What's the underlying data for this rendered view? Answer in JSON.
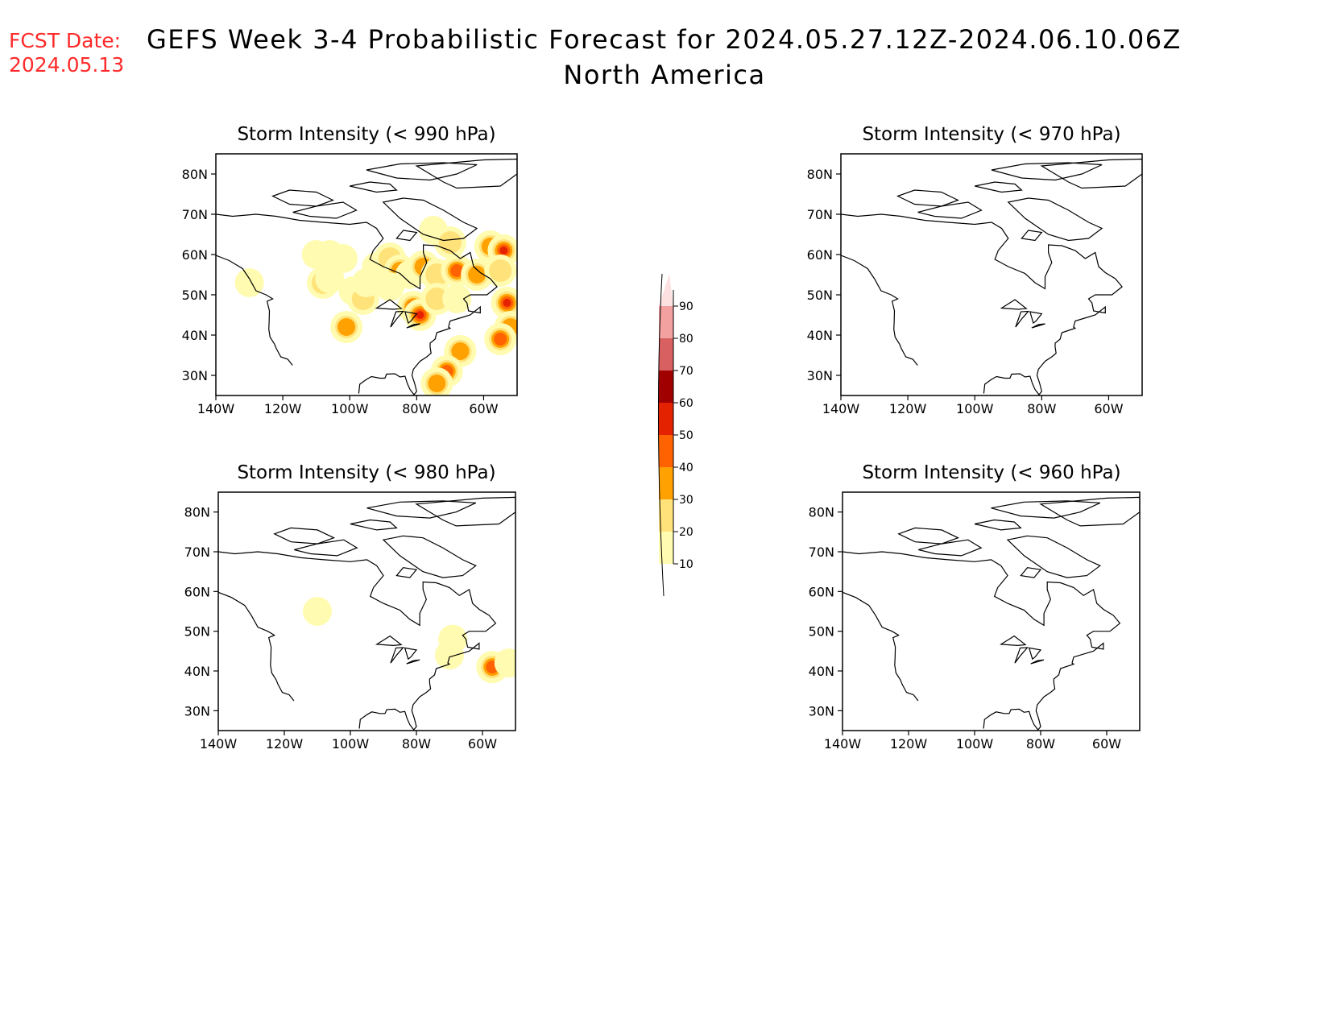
{
  "header": {
    "fcst_line1": "FCST Date:",
    "fcst_line2": "2024.05.13",
    "title": "GEFS Week 3-4 Probabilistic Forecast for 2024.05.27.12Z-2024.06.10.06Z",
    "subtitle": "North America"
  },
  "panels": [
    {
      "id": "p990",
      "title": "Storm Intensity (< 990 hPa)"
    },
    {
      "id": "p970",
      "title": "Storm Intensity (< 970 hPa)"
    },
    {
      "id": "p980",
      "title": "Storm Intensity (< 980 hPa)"
    },
    {
      "id": "p960",
      "title": "Storm Intensity (< 960 hPa)"
    }
  ],
  "axes": {
    "lat_labels": [
      "80N",
      "70N",
      "60N",
      "50N",
      "40N",
      "30N"
    ],
    "lat_values": [
      80,
      70,
      60,
      50,
      40,
      30
    ],
    "lon_labels": [
      "140W",
      "120W",
      "100W",
      "80W",
      "60W"
    ],
    "lon_values": [
      -140,
      -120,
      -100,
      -80,
      -60
    ],
    "lon_range": [
      -140,
      -50
    ],
    "lat_range": [
      25,
      85
    ]
  },
  "colorbar": {
    "levels": [
      "10",
      "20",
      "30",
      "40",
      "50",
      "60",
      "70",
      "80",
      "90"
    ],
    "colors": [
      "#fffbb0",
      "#ffe27a",
      "#ffa100",
      "#ff6200",
      "#e52200",
      "#a10000",
      "#d96060",
      "#f2a0a0",
      "#fde0e0"
    ]
  },
  "probability_areas": {
    "p990": [
      {
        "lon": -110,
        "lat": 60,
        "level": 1
      },
      {
        "lon": -106,
        "lat": 60,
        "level": 1
      },
      {
        "lon": -102,
        "lat": 59,
        "level": 1
      },
      {
        "lon": -108,
        "lat": 53,
        "level": 2
      },
      {
        "lon": -106,
        "lat": 54,
        "level": 1
      },
      {
        "lon": -99,
        "lat": 51,
        "level": 1
      },
      {
        "lon": -96,
        "lat": 49,
        "level": 2
      },
      {
        "lon": -101,
        "lat": 42,
        "level": 3
      },
      {
        "lon": -92,
        "lat": 57,
        "level": 1
      },
      {
        "lon": -88,
        "lat": 59,
        "level": 2
      },
      {
        "lon": -85,
        "lat": 56,
        "level": 3
      },
      {
        "lon": -82,
        "lat": 55,
        "level": 1
      },
      {
        "lon": -78,
        "lat": 57,
        "level": 3
      },
      {
        "lon": -74,
        "lat": 55,
        "level": 2
      },
      {
        "lon": -68,
        "lat": 56,
        "level": 4
      },
      {
        "lon": -62,
        "lat": 55,
        "level": 3
      },
      {
        "lon": -58,
        "lat": 62,
        "level": 3
      },
      {
        "lon": -54,
        "lat": 61,
        "level": 5
      },
      {
        "lon": -55,
        "lat": 56,
        "level": 2
      },
      {
        "lon": -81,
        "lat": 47,
        "level": 4
      },
      {
        "lon": -79,
        "lat": 45,
        "level": 5
      },
      {
        "lon": -74,
        "lat": 49,
        "level": 2
      },
      {
        "lon": -68,
        "lat": 49,
        "level": 1
      },
      {
        "lon": -53,
        "lat": 48,
        "level": 5
      },
      {
        "lon": -52,
        "lat": 42,
        "level": 3
      },
      {
        "lon": -55,
        "lat": 39,
        "level": 4
      },
      {
        "lon": -67,
        "lat": 36,
        "level": 3
      },
      {
        "lon": -71,
        "lat": 31,
        "level": 4
      },
      {
        "lon": -74,
        "lat": 28,
        "level": 3
      },
      {
        "lon": -95,
        "lat": 53,
        "level": 1
      },
      {
        "lon": -88,
        "lat": 52,
        "level": 1
      },
      {
        "lon": -130,
        "lat": 53,
        "level": 1
      },
      {
        "lon": -75,
        "lat": 66,
        "level": 1
      },
      {
        "lon": -70,
        "lat": 63,
        "level": 2
      }
    ],
    "p980": [
      {
        "lon": -110,
        "lat": 55,
        "level": 1
      },
      {
        "lon": -69,
        "lat": 48,
        "level": 1
      },
      {
        "lon": -70,
        "lat": 44,
        "level": 1
      },
      {
        "lon": -57,
        "lat": 41,
        "level": 4
      },
      {
        "lon": -52,
        "lat": 42,
        "level": 1
      }
    ],
    "p970": [],
    "p960": []
  }
}
